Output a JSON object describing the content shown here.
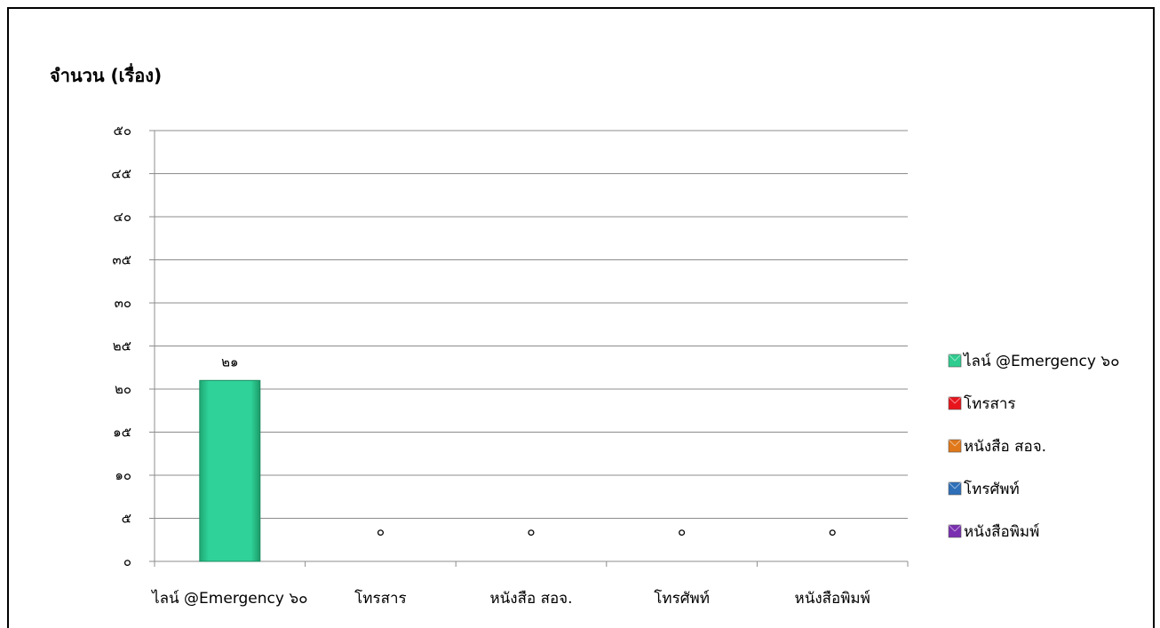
{
  "chart_data": {
    "type": "bar",
    "title": "จำนวน (เรื่อง)",
    "xlabel": "",
    "ylabel": "",
    "categories": [
      "ไลน์ @Emergency ๖๐",
      "โทรสาร",
      "หนังสือ สอจ.",
      "โทรศัพท์",
      "หนังสือพิมพ์"
    ],
    "values": [
      21,
      0,
      0,
      0,
      0
    ],
    "data_labels": [
      "๒๑",
      "๐",
      "๐",
      "๐",
      "๐"
    ],
    "ylim": [
      0,
      50
    ],
    "yticks": [
      0,
      5,
      10,
      15,
      20,
      25,
      30,
      35,
      40,
      45,
      50
    ],
    "ytick_labels": [
      "๐",
      "๕",
      "๑๐",
      "๑๕",
      "๒๐",
      "๒๕",
      "๓๐",
      "๓๕",
      "๔๐",
      "๔๕",
      "๕๐"
    ],
    "grid": true,
    "legend_position": "right",
    "legend": [
      {
        "label": "ไลน์ @Emergency ๖๐",
        "color": "#2ecc8f"
      },
      {
        "label": "โทรสาร",
        "color": "#e8141c"
      },
      {
        "label": "หนังสือ สอจ.",
        "color": "#e0781a"
      },
      {
        "label": "โทรศัพท์",
        "color": "#2e6fb8"
      },
      {
        "label": "หนังสือพิมพ์",
        "color": "#7a2fb0"
      }
    ]
  }
}
